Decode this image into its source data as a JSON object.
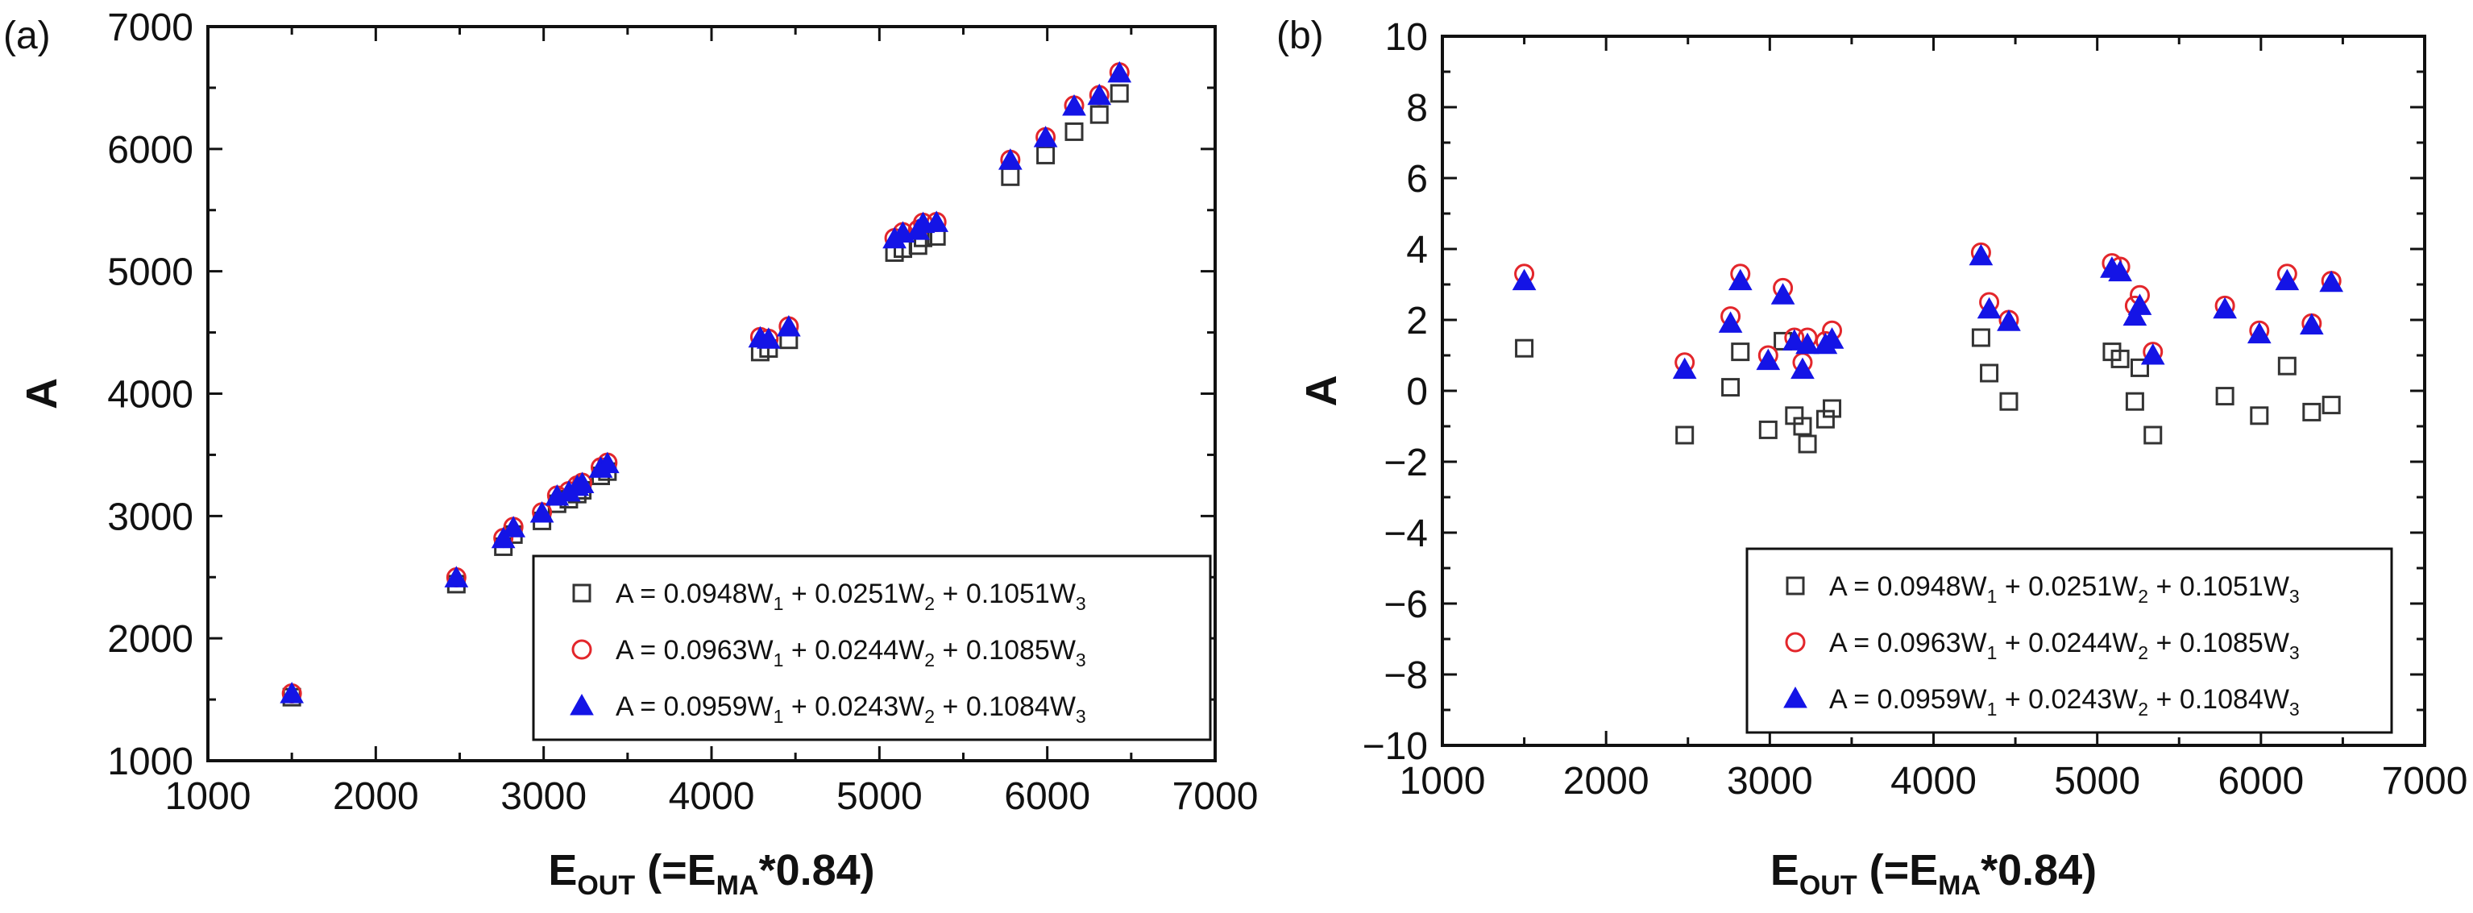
{
  "chart_data": [
    {
      "panel_label": "(a)",
      "type": "scatter",
      "xlabel": {
        "main": "E",
        "sub1": "OUT",
        "mid": " (=E",
        "sub2": "MA",
        "tail": "*0.84)"
      },
      "ylabel": "A",
      "xlim": [
        1000,
        7000
      ],
      "ylim": [
        1000,
        7000
      ],
      "xticks": [
        1000,
        2000,
        3000,
        4000,
        5000,
        6000,
        7000
      ],
      "yticks": [
        1000,
        2000,
        3000,
        4000,
        5000,
        6000,
        7000
      ],
      "grid": false,
      "legend_position": "bottom-right",
      "x": [
        1500,
        2480,
        2760,
        2820,
        2990,
        3080,
        3150,
        3200,
        3230,
        3340,
        3380,
        4290,
        4340,
        4460,
        5090,
        5140,
        5230,
        5260,
        5340,
        5780,
        5990,
        6160,
        6310,
        6430
      ],
      "series": [
        {
          "name": "A = 0.0948W1 + 0.0251W2 + 0.1051W3",
          "marker": "open-square",
          "color": "#333333",
          "legend": {
            "p1": "A = 0.0948W",
            "s1": "1",
            "p2": " + 0.0251W",
            "s2": "2",
            "p3": " + 0.1051W",
            "s3": "3"
          },
          "values": [
            1519,
            2443,
            2749,
            2848,
            2960,
            3100,
            3137,
            3179,
            3210,
            3328,
            3363,
            4340,
            4369,
            4440,
            5153,
            5185,
            5210,
            5273,
            5285,
            5773,
            5950,
            6141,
            6281,
            6454
          ]
        },
        {
          "name": "A = 0.0963W1 + 0.0244W2 + 0.1085W3",
          "marker": "open-circle",
          "color": "#e3262b",
          "legend": {
            "p1": "A = 0.0963W",
            "s1": "1",
            "p2": " + 0.0244W",
            "s2": "2",
            "p3": " + 0.1085W",
            "s3": "3"
          },
          "values": [
            1550,
            2498,
            2820,
            2911,
            3030,
            3168,
            3203,
            3250,
            3272,
            3398,
            3436,
            4463,
            4449,
            4550,
            5271,
            5320,
            5340,
            5397,
            5403,
            5912,
            6096,
            6355,
            6440,
            6626
          ]
        },
        {
          "name": "A = 0.0959W1 + 0.0243W2 + 0.1084W3",
          "marker": "filled-triangle",
          "color": "#1414e6",
          "legend": {
            "p1": "A = 0.0959W",
            "s1": "1",
            "p2": " + 0.0243W",
            "s2": "2",
            "p3": " + 0.1084W",
            "s3": "3"
          },
          "values": [
            1546,
            2493,
            2813,
            2902,
            3022,
            3160,
            3194,
            3240,
            3262,
            3388,
            3426,
            4453,
            4443,
            4543,
            5263,
            5311,
            5333,
            5389,
            5397,
            5906,
            6090,
            6348,
            6435,
            6619
          ]
        }
      ]
    },
    {
      "panel_label": "(b)",
      "type": "scatter",
      "xlabel": {
        "main": "E",
        "sub1": "OUT",
        "mid": " (=E",
        "sub2": "MA",
        "tail": "*0.84)"
      },
      "ylabel": "A",
      "xlim": [
        1000,
        7000
      ],
      "ylim": [
        -10,
        10
      ],
      "xticks": [
        1000,
        2000,
        3000,
        4000,
        5000,
        6000,
        7000
      ],
      "yticks": [
        -10,
        -8,
        -6,
        -4,
        -2,
        0,
        2,
        4,
        6,
        8,
        10
      ],
      "grid": false,
      "legend_position": "bottom-right",
      "x": [
        1500,
        2480,
        2760,
        2820,
        2990,
        3080,
        3150,
        3200,
        3230,
        3340,
        3380,
        4290,
        4340,
        4460,
        5090,
        5140,
        5230,
        5260,
        5340,
        5780,
        5990,
        6160,
        6310,
        6430
      ],
      "series": [
        {
          "name": "A = 0.0948W1 + 0.0251W2 + 0.1051W3",
          "marker": "open-square",
          "color": "#333333",
          "legend": {
            "p1": "A = 0.0948W",
            "s1": "1",
            "p2": " + 0.0251W",
            "s2": "2",
            "p3": " + 0.1051W",
            "s3": "3"
          },
          "values": [
            1.2,
            -1.25,
            0.1,
            1.1,
            -1.1,
            1.4,
            -0.7,
            -1.0,
            -1.5,
            -0.8,
            -0.5,
            1.5,
            0.5,
            -0.3,
            1.1,
            0.9,
            -0.3,
            0.65,
            -1.25,
            -0.15,
            -0.7,
            0.7,
            -0.6,
            -0.4
          ]
        },
        {
          "name": "A = 0.0963W1 + 0.0244W2 + 0.1085W3",
          "marker": "open-circle",
          "color": "#e3262b",
          "legend": {
            "p1": "A = 0.0963W",
            "s1": "1",
            "p2": " + 0.0244W",
            "s2": "2",
            "p3": " + 0.1085W",
            "s3": "3"
          },
          "values": [
            3.3,
            0.8,
            2.1,
            3.3,
            1.0,
            2.9,
            1.5,
            0.8,
            1.5,
            1.4,
            1.7,
            3.9,
            2.5,
            2.0,
            3.6,
            3.5,
            2.4,
            2.7,
            1.1,
            2.4,
            1.7,
            3.3,
            1.9,
            3.1
          ]
        },
        {
          "name": "A = 0.0959W1 + 0.0243W2 + 0.1084W3",
          "marker": "filled-triangle",
          "color": "#1414e6",
          "legend": {
            "p1": "A = 0.0959W",
            "s1": "1",
            "p2": " + 0.0243W",
            "s2": "2",
            "p3": " + 0.1084W",
            "s3": "3"
          },
          "values": [
            3.1,
            0.6,
            1.9,
            3.1,
            0.85,
            2.7,
            1.4,
            0.6,
            1.3,
            1.3,
            1.45,
            3.8,
            2.3,
            1.95,
            3.45,
            3.35,
            2.1,
            2.4,
            1.0,
            2.3,
            1.6,
            3.1,
            1.85,
            3.05
          ]
        }
      ]
    }
  ]
}
